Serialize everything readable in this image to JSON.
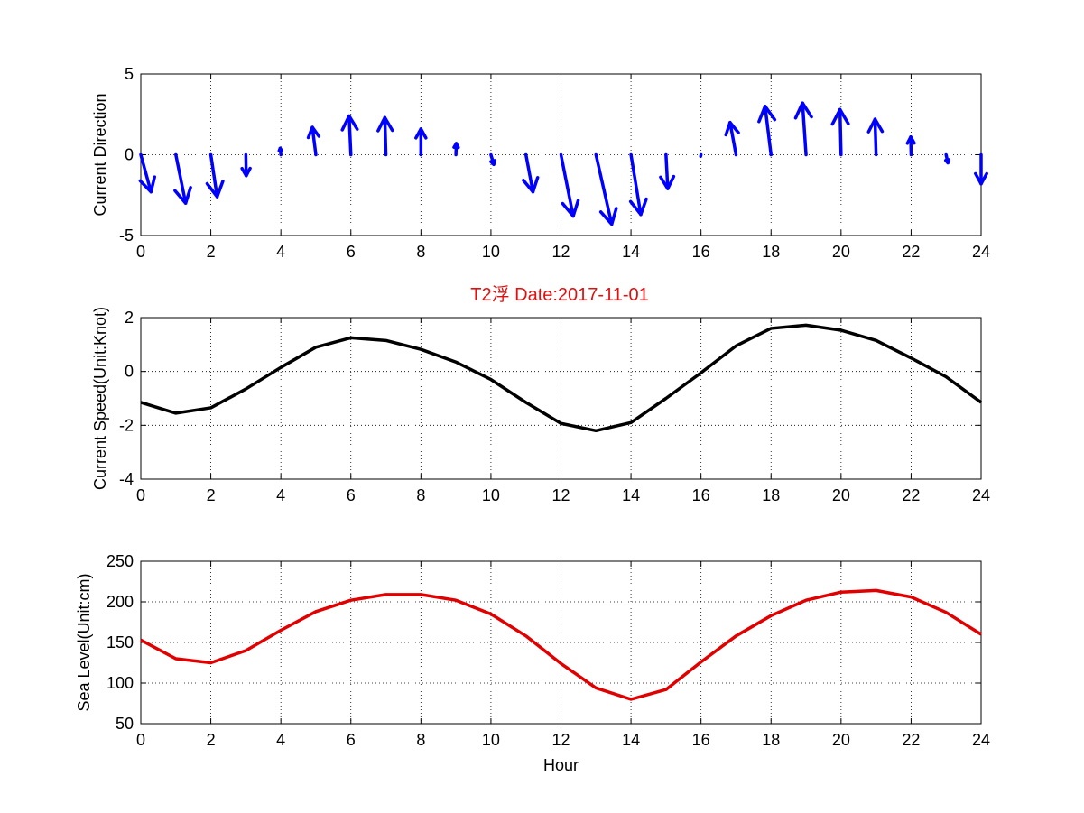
{
  "figure_title": "T2浮    Date:2017-11-01",
  "colors": {
    "title": "#e01010",
    "arrows": "#0000ff",
    "speed_line": "#000000",
    "sea_level_line": "#e00000",
    "grid": "#000000"
  },
  "chart_data": [
    {
      "type": "quiver",
      "ylabel": "Current Direction",
      "xlabel": "",
      "xlim": [
        0,
        24
      ],
      "ylim": [
        -5,
        5
      ],
      "xticks": [
        "0",
        "2",
        "4",
        "6",
        "8",
        "10",
        "12",
        "14",
        "16",
        "18",
        "20",
        "22",
        "24"
      ],
      "yticks": [
        "-5",
        "0",
        "5"
      ],
      "grid": true,
      "series": [
        {
          "x": [
            0,
            1,
            2,
            3,
            4,
            5,
            6,
            7,
            8,
            9,
            10,
            11,
            12,
            13,
            14,
            15,
            16,
            17,
            18,
            19,
            20,
            21,
            22,
            23,
            24
          ],
          "u": [
            0.29,
            0.28,
            0.18,
            0.01,
            -0.02,
            -0.1,
            -0.05,
            -0.03,
            0.0,
            0.01,
            0.08,
            0.2,
            0.35,
            0.45,
            0.28,
            0.05,
            -0.01,
            -0.17,
            -0.17,
            -0.1,
            -0.03,
            -0.03,
            -0.01,
            0.05,
            0.08
          ],
          "v": [
            -2.3,
            -3.0,
            -2.6,
            -1.3,
            0.4,
            1.7,
            2.4,
            2.3,
            1.6,
            0.7,
            -0.6,
            -2.3,
            -3.8,
            -4.3,
            -3.7,
            -2.1,
            -0.1,
            2.0,
            3.0,
            3.2,
            2.8,
            2.2,
            1.1,
            -0.5,
            -1.8
          ]
        }
      ]
    },
    {
      "type": "line",
      "ylabel": "Current Speed(Unit:Knot)",
      "xlabel": "",
      "xlim": [
        0,
        24
      ],
      "ylim": [
        -4,
        2
      ],
      "xticks": [
        "0",
        "2",
        "4",
        "6",
        "8",
        "10",
        "12",
        "14",
        "16",
        "18",
        "20",
        "22",
        "24"
      ],
      "yticks": [
        "-4",
        "-2",
        "0",
        "2"
      ],
      "grid": true,
      "series": [
        {
          "x": [
            0,
            1,
            2,
            3,
            4,
            5,
            6,
            7,
            8,
            9,
            10,
            11,
            12,
            13,
            14,
            15,
            16,
            17,
            18,
            19,
            20,
            21,
            22,
            23,
            24
          ],
          "y": [
            -1.15,
            -1.55,
            -1.35,
            -0.65,
            0.15,
            0.9,
            1.25,
            1.15,
            0.82,
            0.35,
            -0.3,
            -1.15,
            -1.93,
            -2.2,
            -1.9,
            -1.0,
            -0.05,
            0.95,
            1.6,
            1.72,
            1.53,
            1.15,
            0.5,
            -0.2,
            -1.15
          ]
        }
      ]
    },
    {
      "type": "line",
      "ylabel": "Sea Level(Unit:cm)",
      "xlabel": "Hour",
      "xlim": [
        0,
        24
      ],
      "ylim": [
        50,
        250
      ],
      "xticks": [
        "0",
        "2",
        "4",
        "6",
        "8",
        "10",
        "12",
        "14",
        "16",
        "18",
        "20",
        "22",
        "24"
      ],
      "yticks": [
        "50",
        "100",
        "150",
        "200",
        "250"
      ],
      "grid": true,
      "series": [
        {
          "x": [
            0,
            1,
            2,
            3,
            4,
            5,
            6,
            7,
            8,
            9,
            10,
            11,
            12,
            13,
            14,
            15,
            16,
            17,
            18,
            19,
            20,
            21,
            22,
            23,
            24
          ],
          "y": [
            153,
            130,
            125,
            140,
            165,
            188,
            202,
            209,
            209,
            202,
            185,
            158,
            124,
            94,
            80,
            92,
            126,
            158,
            183,
            202,
            212,
            214,
            206,
            187,
            160
          ]
        }
      ]
    }
  ]
}
